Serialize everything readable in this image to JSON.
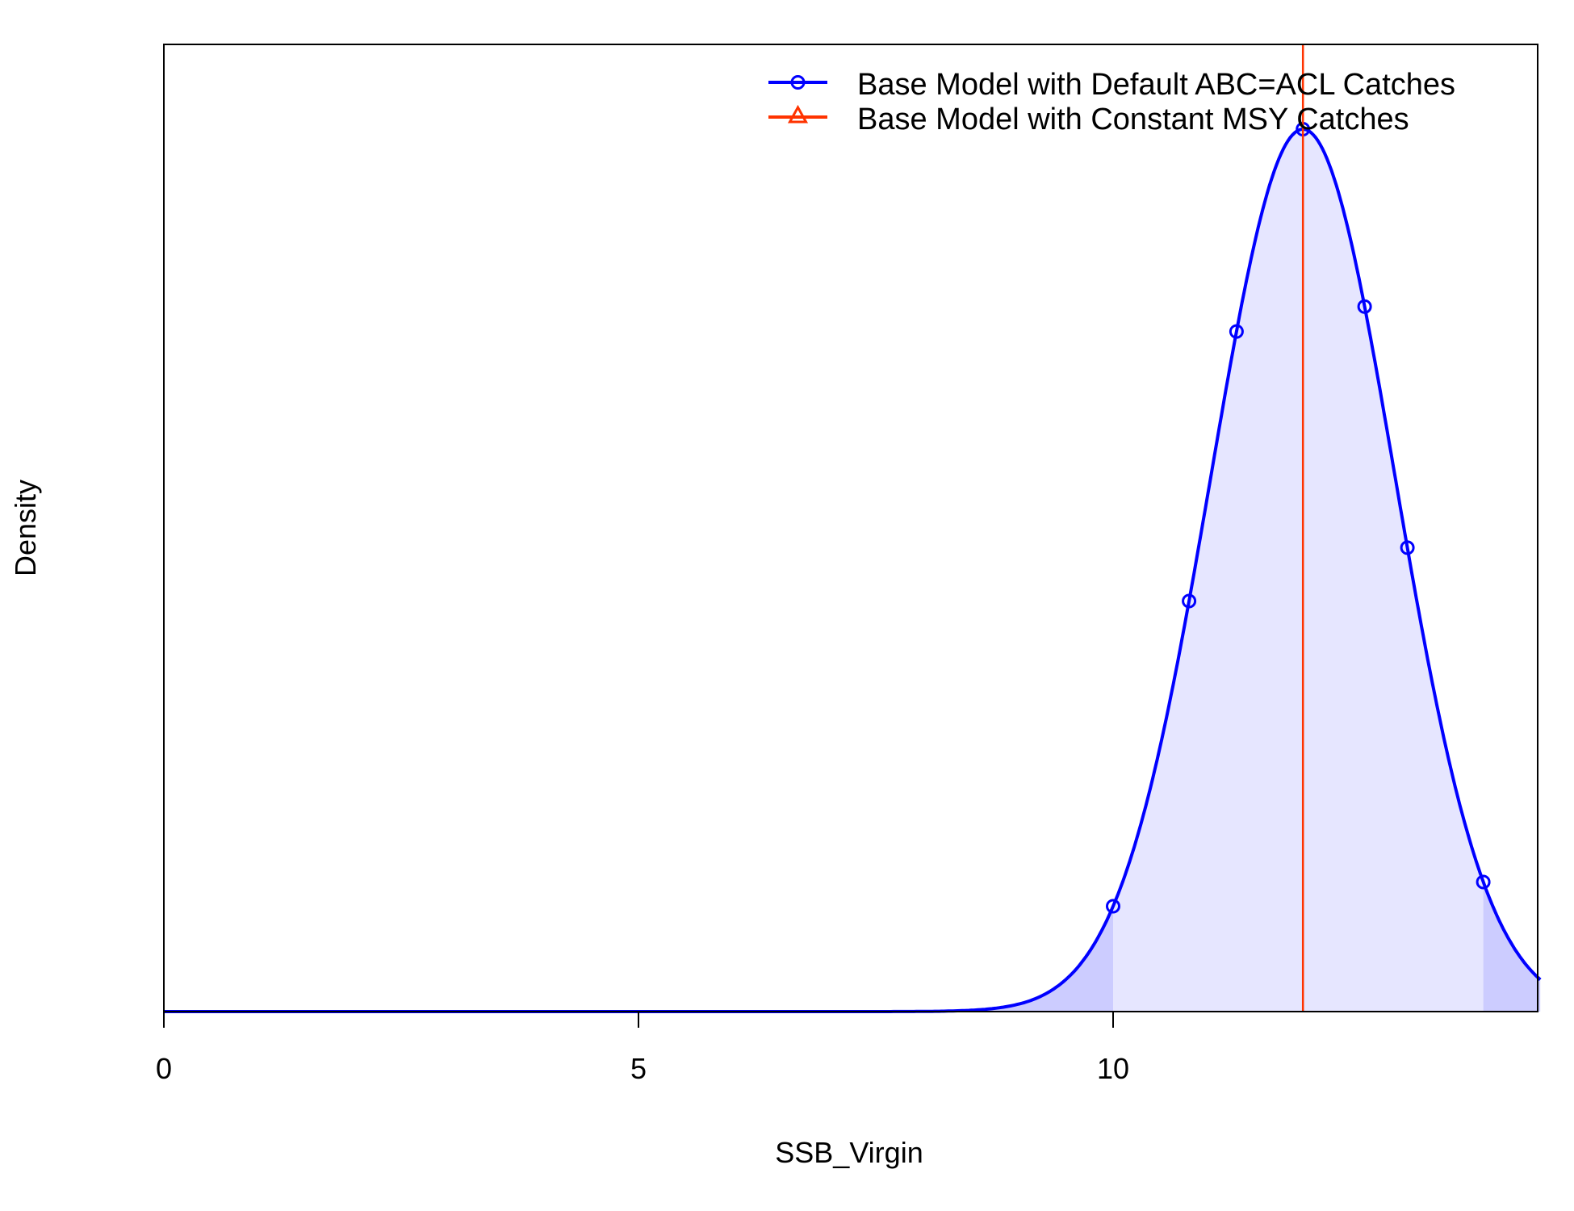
{
  "chart_data": {
    "type": "line",
    "title": "",
    "xlabel": "SSB_Virgin",
    "ylabel": "Density",
    "xlim": [
      0,
      14.5
    ],
    "x_ticks": [
      0,
      5,
      10
    ],
    "x_tick_labels": [
      "0",
      "5",
      "10"
    ],
    "y_ticks_shown": false,
    "grid": false,
    "legend_position": "top-right",
    "reference_line_x": 12,
    "series": [
      {
        "name": "Base Model with Default ABC=ACL Catches",
        "color": "#0000ff",
        "fill_color": "#e6e6ff",
        "tail_fill_color": "#ccccff",
        "marker": "circle",
        "distribution": "normal",
        "mean": 12,
        "sd": 0.97,
        "interval_95": [
          10.0,
          13.9
        ],
        "marker_x": [
          10.0,
          10.8,
          11.3,
          12.0,
          12.65,
          13.1,
          13.9
        ]
      },
      {
        "name": "Base Model with Constant MSY Catches",
        "color": "#ff3300",
        "marker": "triangle",
        "distribution": "point",
        "value": 12
      }
    ]
  }
}
